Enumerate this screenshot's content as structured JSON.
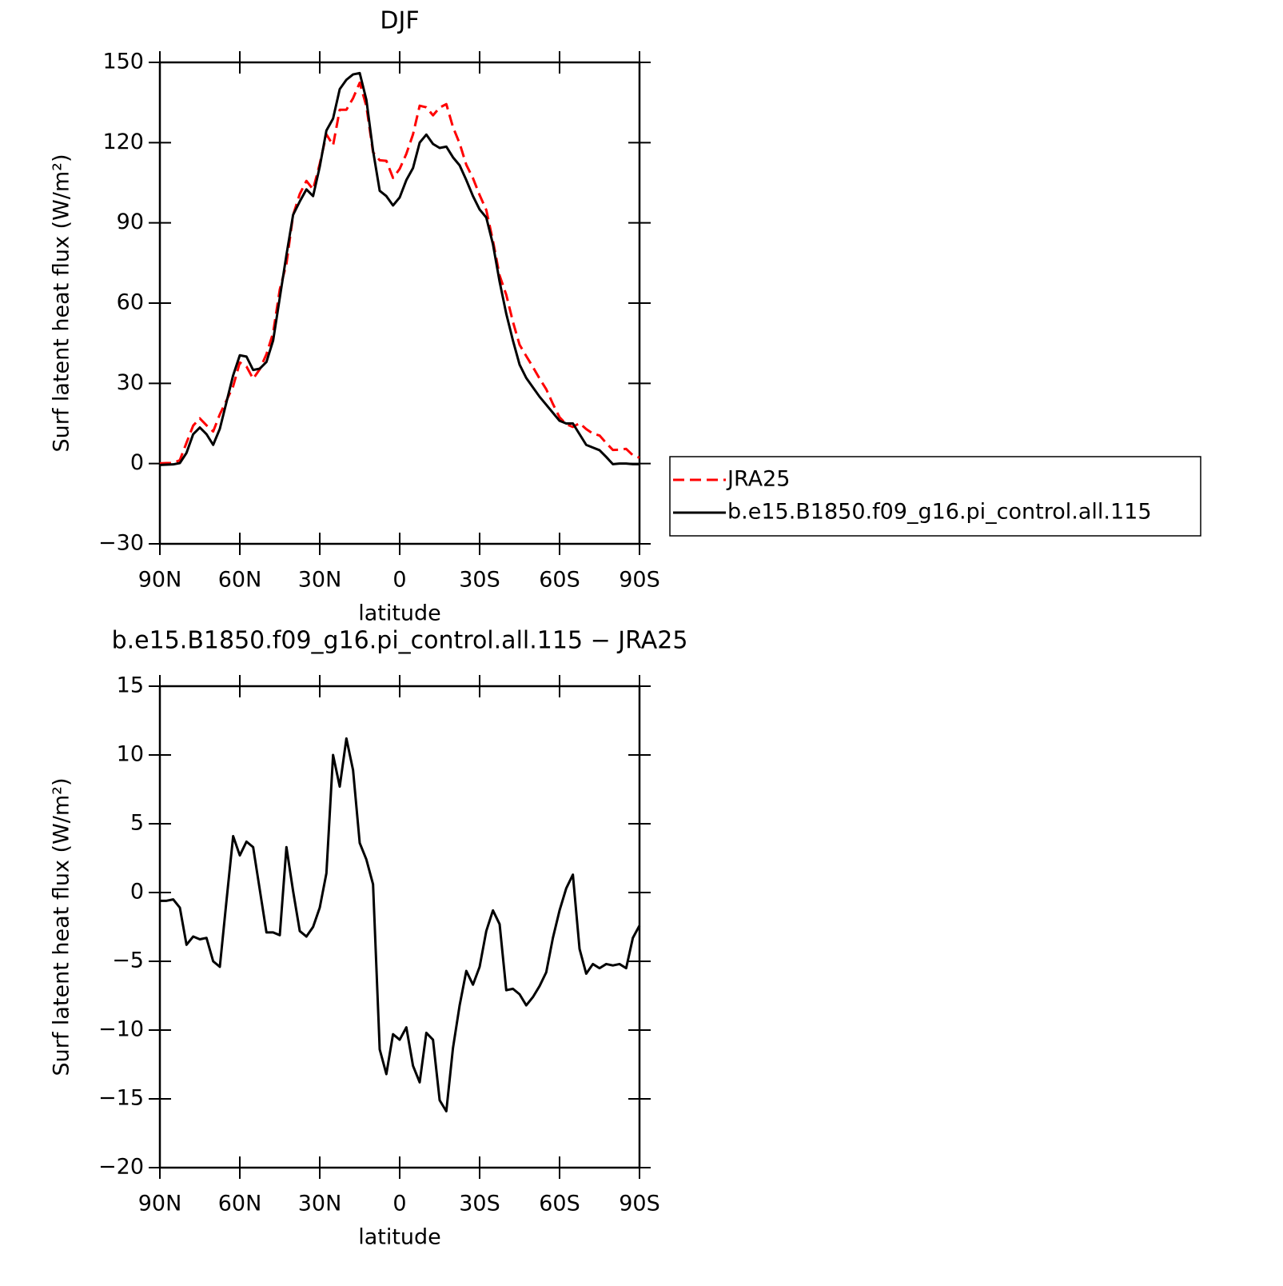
{
  "chart_data": [
    {
      "type": "line",
      "title": "DJF",
      "xlabel": "latitude",
      "ylabel": "Surf latent heat flux (W/m²)",
      "x": [
        90,
        87.5,
        85,
        82.5,
        80,
        77.5,
        75,
        72.5,
        70,
        67.5,
        65,
        62.5,
        60,
        57.5,
        55,
        52.5,
        50,
        47.5,
        45,
        42.5,
        40,
        37.5,
        35,
        32.5,
        30,
        27.5,
        25,
        22.5,
        20,
        17.5,
        15,
        12.5,
        10,
        7.5,
        5,
        2.5,
        0,
        -2.5,
        -5,
        -7.5,
        -10,
        -12.5,
        -15,
        -17.5,
        -20,
        -22.5,
        -25,
        -27.5,
        -30,
        -32.5,
        -35,
        -37.5,
        -40,
        -42.5,
        -45,
        -47.5,
        -50,
        -52.5,
        -55,
        -57.5,
        -60,
        -62.5,
        -65,
        -67.5,
        -70,
        -72.5,
        -75,
        -77.5,
        -80,
        -82.5,
        -85,
        -87.5,
        -90
      ],
      "xlim": [
        90,
        -90
      ],
      "xticks": [
        {
          "value": 90,
          "label": "90N"
        },
        {
          "value": 60,
          "label": "60N"
        },
        {
          "value": 30,
          "label": "30N"
        },
        0,
        {
          "value": -30,
          "label": "30S"
        },
        {
          "value": -60,
          "label": "60S"
        },
        {
          "value": -90,
          "label": "90S"
        }
      ],
      "ylim": [
        -30,
        150
      ],
      "yticks": [
        {
          "value": -30,
          "label": "−30"
        },
        0,
        30,
        60,
        90,
        120,
        150
      ],
      "legend": "right",
      "series": [
        {
          "name": "JRA25",
          "color": "#ff0000",
          "line_style": "dashed",
          "values": [
            0.1,
            0.2,
            0.2,
            1.3,
            7.8,
            14.2,
            16.9,
            14.3,
            12,
            18.4,
            23.6,
            28.9,
            37.8,
            36.3,
            31.7,
            35.3,
            40.9,
            48.9,
            65.1,
            74.7,
            92.9,
            100.8,
            105.7,
            102.5,
            112.1,
            123.1,
            119,
            132.3,
            132.3,
            136.6,
            142.4,
            133.6,
            116.4,
            113.4,
            113.2,
            106.8,
            110.2,
            115.8,
            123.1,
            133.8,
            133.2,
            130.2,
            133.1,
            134.4,
            125.8,
            119.7,
            111.7,
            106.7,
            100.4,
            94.8,
            83.3,
            70.3,
            63.1,
            53,
            44.4,
            40.2,
            36.1,
            31.8,
            27.8,
            22.3,
            17.3,
            14.7,
            13.7,
            15.1,
            12.9,
            11.2,
            10.5,
            7.7,
            5.1,
            5.2,
            5.5,
            3.1,
            2.2
          ]
        },
        {
          "name": "b.e15.B1850.f09_g16.pi_control.all.115",
          "color": "#000000",
          "line_style": "solid",
          "values": [
            -0.5,
            -0.4,
            -0.3,
            0.2,
            4,
            11,
            13.5,
            11,
            7,
            13,
            23,
            33,
            40.5,
            40,
            35,
            35.5,
            38,
            46,
            62,
            78,
            93,
            98,
            102.5,
            100,
            111,
            124.5,
            129,
            140,
            143.5,
            145.5,
            146,
            136,
            117,
            102,
            100,
            96.5,
            99.5,
            106,
            110.5,
            120,
            123,
            119.5,
            118,
            118.5,
            114.5,
            111.5,
            106,
            100,
            95,
            92,
            82,
            68,
            56,
            46,
            37,
            32,
            28.5,
            25,
            22,
            19,
            16,
            15,
            15,
            11,
            7,
            6,
            5,
            2.5,
            -0.2,
            0,
            0,
            -0.2,
            -0.2
          ]
        }
      ]
    },
    {
      "type": "line",
      "title": "b.e15.B1850.f09_g16.pi_control.all.115 − JRA25",
      "xlabel": "latitude",
      "ylabel": "Surf latent heat flux (W/m²)",
      "x": [
        90,
        87.5,
        85,
        82.5,
        80,
        77.5,
        75,
        72.5,
        70,
        67.5,
        65,
        62.5,
        60,
        57.5,
        55,
        52.5,
        50,
        47.5,
        45,
        42.5,
        40,
        37.5,
        35,
        32.5,
        30,
        27.5,
        25,
        22.5,
        20,
        17.5,
        15,
        12.5,
        10,
        7.5,
        5,
        2.5,
        0,
        -2.5,
        -5,
        -7.5,
        -10,
        -12.5,
        -15,
        -17.5,
        -20,
        -22.5,
        -25,
        -27.5,
        -30,
        -32.5,
        -35,
        -37.5,
        -40,
        -42.5,
        -45,
        -47.5,
        -50,
        -52.5,
        -55,
        -57.5,
        -60,
        -62.5,
        -65,
        -67.5,
        -70,
        -72.5,
        -75,
        -77.5,
        -80,
        -82.5,
        -85,
        -87.5,
        -90
      ],
      "xlim": [
        90,
        -90
      ],
      "xticks": [
        {
          "value": 90,
          "label": "90N"
        },
        {
          "value": 60,
          "label": "60N"
        },
        {
          "value": 30,
          "label": "30N"
        },
        0,
        {
          "value": -30,
          "label": "30S"
        },
        {
          "value": -60,
          "label": "60S"
        },
        {
          "value": -90,
          "label": "90S"
        }
      ],
      "ylim": [
        -20,
        15
      ],
      "yticks": [
        {
          "value": -20,
          "label": "−20"
        },
        {
          "value": -15,
          "label": "−15"
        },
        {
          "value": -10,
          "label": "−10"
        },
        {
          "value": -5,
          "label": "−5"
        },
        0,
        5,
        10,
        15
      ],
      "series": [
        {
          "color": "#000000",
          "line_style": "solid",
          "values": [
            -0.6,
            -0.6,
            -0.5,
            -1.1,
            -3.8,
            -3.2,
            -3.4,
            -3.3,
            -5.0,
            -5.4,
            -0.6,
            4.1,
            2.7,
            3.7,
            3.3,
            0.2,
            -2.9,
            -2.9,
            -3.1,
            3.3,
            0.1,
            -2.8,
            -3.2,
            -2.5,
            -1.1,
            1.4,
            10.0,
            7.7,
            11.2,
            8.9,
            3.6,
            2.4,
            0.6,
            -11.4,
            -13.2,
            -10.3,
            -10.7,
            -9.8,
            -12.6,
            -13.8,
            -10.2,
            -10.7,
            -15.1,
            -15.9,
            -11.3,
            -8.2,
            -5.7,
            -6.7,
            -5.4,
            -2.8,
            -1.3,
            -2.3,
            -7.1,
            -7.0,
            -7.4,
            -8.2,
            -7.6,
            -6.8,
            -5.8,
            -3.3,
            -1.3,
            0.3,
            1.3,
            -4.1,
            -5.9,
            -5.2,
            -5.5,
            -5.2,
            -5.3,
            -5.2,
            -5.5,
            -3.3,
            -2.4
          ]
        }
      ]
    }
  ]
}
